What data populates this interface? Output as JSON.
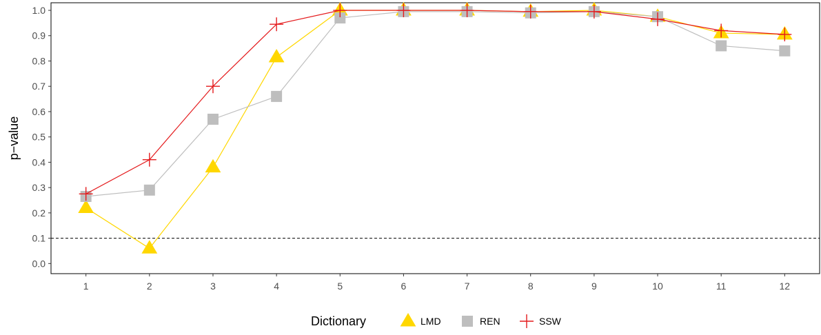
{
  "chart_data": {
    "type": "line",
    "title": "",
    "xlabel": "",
    "ylabel": "p−value",
    "x": [
      1,
      2,
      3,
      4,
      5,
      6,
      7,
      8,
      9,
      10,
      11,
      12
    ],
    "xlim": [
      0.45,
      12.55
    ],
    "ylim": [
      -0.04,
      1.03
    ],
    "yticks": [
      0.0,
      0.1,
      0.2,
      0.3,
      0.4,
      0.5,
      0.6,
      0.7,
      0.8,
      0.9,
      1.0
    ],
    "ytick_labels": [
      "0.0",
      "0.1",
      "0.2",
      "0.3",
      "0.4",
      "0.5",
      "0.6",
      "0.7",
      "0.8",
      "0.9",
      "1.0"
    ],
    "xtick_labels": [
      "1",
      "2",
      "3",
      "4",
      "5",
      "6",
      "7",
      "8",
      "9",
      "10",
      "11",
      "12"
    ],
    "reference_line": {
      "y": 0.1,
      "style": "dashed"
    },
    "grid": false,
    "legend": {
      "title": "Dictionary",
      "placement": "bottom"
    },
    "series": [
      {
        "name": "LMD",
        "marker": "triangle",
        "color": "#FFD700",
        "values": [
          0.22,
          0.06,
          0.38,
          0.815,
          1.0,
          1.0,
          1.0,
          0.995,
          1.0,
          0.975,
          0.91,
          0.905
        ]
      },
      {
        "name": "REN",
        "marker": "square",
        "color": "#BEBEBE",
        "values": [
          0.265,
          0.29,
          0.57,
          0.66,
          0.97,
          0.995,
          0.995,
          0.99,
          0.995,
          0.975,
          0.86,
          0.84
        ]
      },
      {
        "name": "SSW",
        "marker": "plus",
        "color": "#E41A1C",
        "values": [
          0.275,
          0.41,
          0.7,
          0.945,
          1.0,
          1.0,
          1.0,
          0.995,
          0.995,
          0.965,
          0.92,
          0.905
        ]
      }
    ]
  }
}
